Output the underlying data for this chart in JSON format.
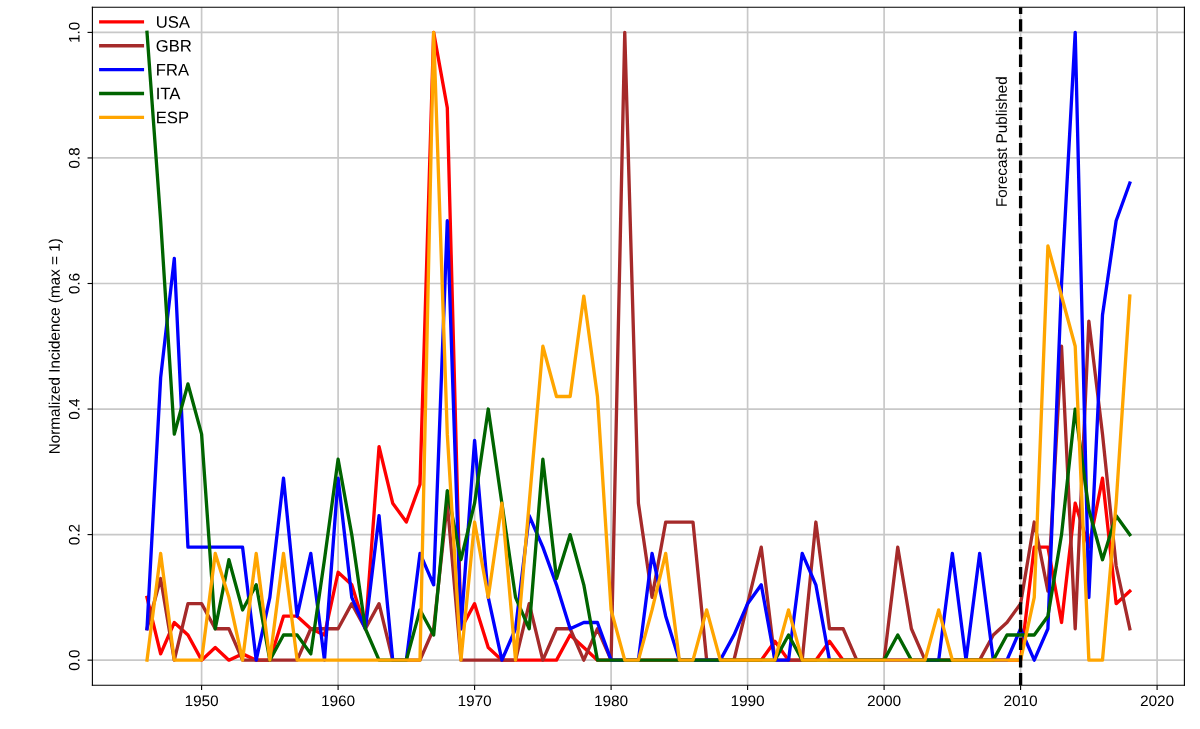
{
  "chart_data": {
    "type": "line",
    "ylabel": "Normalized Incidence (max = 1)",
    "x": [
      1946,
      1947,
      1948,
      1949,
      1950,
      1951,
      1952,
      1953,
      1954,
      1955,
      1956,
      1957,
      1958,
      1959,
      1960,
      1961,
      1962,
      1963,
      1964,
      1965,
      1966,
      1967,
      1968,
      1969,
      1970,
      1971,
      1972,
      1973,
      1974,
      1975,
      1976,
      1977,
      1978,
      1979,
      1980,
      1981,
      1982,
      1983,
      1984,
      1985,
      1986,
      1987,
      1988,
      1989,
      1990,
      1991,
      1992,
      1993,
      1994,
      1995,
      1996,
      1997,
      1998,
      1999,
      2000,
      2001,
      2002,
      2003,
      2004,
      2005,
      2006,
      2007,
      2008,
      2009,
      2010,
      2011,
      2012,
      2013,
      2014,
      2015,
      2016,
      2017,
      2018
    ],
    "series": [
      {
        "name": "USA",
        "color": "#ff0000",
        "values": [
          0.1,
          0.01,
          0.06,
          0.04,
          0.0,
          0.02,
          0.0,
          0.01,
          0.0,
          0.0,
          0.07,
          0.07,
          0.05,
          0.04,
          0.14,
          0.12,
          0.05,
          0.34,
          0.25,
          0.22,
          0.28,
          1.0,
          0.88,
          0.05,
          0.09,
          0.02,
          0.0,
          0.0,
          0.0,
          0.0,
          0.0,
          0.04,
          0.02,
          0.0,
          0.0,
          0.0,
          0.0,
          0.0,
          0.0,
          0.0,
          0.0,
          0.0,
          0.0,
          0.0,
          0.0,
          0.0,
          0.03,
          0.0,
          0.0,
          0.0,
          0.03,
          0.0,
          0.0,
          0.0,
          0.0,
          0.0,
          0.0,
          0.0,
          0.0,
          0.0,
          0.0,
          0.0,
          0.0,
          0.0,
          0.0,
          0.18,
          0.18,
          0.06,
          0.25,
          0.18,
          0.29,
          0.09,
          0.11
        ]
      },
      {
        "name": "GBR",
        "color": "#a52a2a",
        "values": [
          0.05,
          0.13,
          0.0,
          0.09,
          0.09,
          0.05,
          0.05,
          0.0,
          0.0,
          0.0,
          0.0,
          0.0,
          0.05,
          0.05,
          0.05,
          0.09,
          0.05,
          0.09,
          0.0,
          0.0,
          0.0,
          0.05,
          0.25,
          0.0,
          0.0,
          0.0,
          0.0,
          0.0,
          0.09,
          0.0,
          0.05,
          0.05,
          0.0,
          0.05,
          0.0,
          1.0,
          0.25,
          0.1,
          0.22,
          0.22,
          0.22,
          0.0,
          0.0,
          0.0,
          0.09,
          0.18,
          0.0,
          0.0,
          0.0,
          0.22,
          0.05,
          0.05,
          0.0,
          0.0,
          0.0,
          0.18,
          0.05,
          0.0,
          0.0,
          0.0,
          0.0,
          0.0,
          0.04,
          0.06,
          0.09,
          0.22,
          0.11,
          0.5,
          0.05,
          0.54,
          0.36,
          0.15,
          0.05
        ]
      },
      {
        "name": "FRA",
        "color": "#0000ff",
        "values": [
          0.05,
          0.45,
          0.64,
          0.18,
          0.18,
          0.18,
          0.18,
          0.18,
          0.0,
          0.1,
          0.29,
          0.07,
          0.17,
          0.0,
          0.29,
          0.1,
          0.05,
          0.23,
          0.0,
          0.0,
          0.17,
          0.12,
          0.7,
          0.05,
          0.35,
          0.1,
          0.0,
          0.05,
          0.23,
          0.18,
          0.12,
          0.05,
          0.06,
          0.06,
          0.0,
          0.0,
          0.0,
          0.17,
          0.07,
          0.0,
          0.0,
          0.0,
          0.0,
          0.04,
          0.09,
          0.12,
          0.0,
          0.0,
          0.17,
          0.12,
          0.0,
          0.0,
          0.0,
          0.0,
          0.0,
          0.0,
          0.0,
          0.0,
          0.0,
          0.17,
          0.0,
          0.17,
          0.0,
          0.0,
          0.05,
          0.0,
          0.05,
          0.6,
          1.0,
          0.1,
          0.55,
          0.7,
          0.76
        ]
      },
      {
        "name": "ITA",
        "color": "#006400",
        "values": [
          1.0,
          0.7,
          0.36,
          0.44,
          0.36,
          0.05,
          0.16,
          0.08,
          0.12,
          0.0,
          0.04,
          0.04,
          0.01,
          0.16,
          0.32,
          0.2,
          0.05,
          0.0,
          0.0,
          0.0,
          0.08,
          0.04,
          0.27,
          0.16,
          0.25,
          0.4,
          0.25,
          0.1,
          0.05,
          0.32,
          0.13,
          0.2,
          0.12,
          0.0,
          0.0,
          0.0,
          0.0,
          0.0,
          0.0,
          0.0,
          0.0,
          0.0,
          0.0,
          0.0,
          0.0,
          0.0,
          0.0,
          0.04,
          0.0,
          0.0,
          0.0,
          0.0,
          0.0,
          0.0,
          0.0,
          0.04,
          0.0,
          0.0,
          0.0,
          0.0,
          0.0,
          0.0,
          0.0,
          0.04,
          0.04,
          0.04,
          0.07,
          0.2,
          0.4,
          0.24,
          0.16,
          0.23,
          0.2
        ]
      },
      {
        "name": "ESP",
        "color": "#ffa500",
        "values": [
          0.0,
          0.17,
          0.0,
          0.0,
          0.0,
          0.17,
          0.1,
          0.0,
          0.17,
          0.0,
          0.17,
          0.0,
          0.0,
          0.0,
          0.0,
          0.0,
          0.0,
          0.0,
          0.0,
          0.0,
          0.0,
          1.0,
          0.36,
          0.0,
          0.22,
          0.1,
          0.25,
          0.0,
          0.25,
          0.5,
          0.42,
          0.42,
          0.58,
          0.42,
          0.08,
          0.0,
          0.0,
          0.08,
          0.17,
          0.0,
          0.0,
          0.08,
          0.0,
          0.0,
          0.0,
          0.0,
          0.0,
          0.08,
          0.0,
          0.0,
          0.0,
          0.0,
          0.0,
          0.0,
          0.0,
          0.0,
          0.0,
          0.0,
          0.08,
          0.0,
          0.0,
          0.0,
          0.0,
          0.0,
          0.0,
          0.1,
          0.66,
          0.58,
          0.5,
          0.0,
          0.0,
          0.25,
          0.58
        ]
      }
    ],
    "xlim": [
      1942,
      2022
    ],
    "xticks": [
      1950,
      1960,
      1970,
      1980,
      1990,
      2000,
      2010,
      2020
    ],
    "ylim": [
      -0.04,
      1.04
    ],
    "yticks": [
      {
        "value": 0,
        "label": "0.0"
      },
      {
        "value": 0.2,
        "label": "0.2"
      },
      {
        "value": 0.4,
        "label": "0.4"
      },
      {
        "value": 0.6,
        "label": "0.6"
      },
      {
        "value": 0.8,
        "label": "0.8"
      },
      {
        "value": 1.0,
        "label": "1.0"
      }
    ],
    "ref_lines": [
      {
        "axis": "x",
        "value": 2010,
        "label": "Forecast Published",
        "color": "#000000",
        "line_style": "dashed"
      }
    ],
    "grid": true,
    "legend": "top left",
    "marker": "none",
    "line_style": "solid"
  }
}
